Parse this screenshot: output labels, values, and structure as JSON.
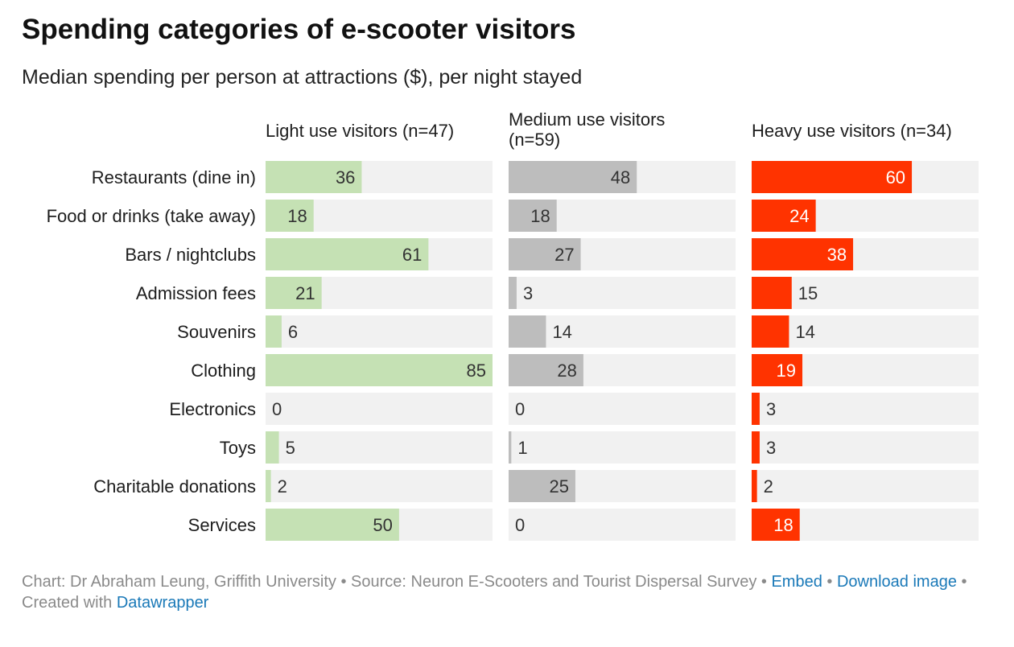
{
  "title": "Spending categories of e-scooter visitors",
  "subtitle": "Median spending per person at attractions ($), per night stayed",
  "footer": {
    "chart_credit": "Chart: Dr Abraham Leung, Griffith University",
    "sep1": " • ",
    "source": "Source: Neuron E-Scooters and Tourist Dispersal Survey",
    "sep2": " • ",
    "embed": "Embed",
    "sep3": " • ",
    "download": "Download image",
    "sep4": " • ",
    "created": "Created with ",
    "datawrapper": "Datawrapper"
  },
  "colors": {
    "light": "#c5e1b4",
    "medium": "#bdbdbd",
    "heavy": "#ff3300",
    "track": "#f1f1f1",
    "text_dark": "#333333",
    "text_light": "#ffffff",
    "link": "#1a79b8"
  },
  "chart_data": {
    "type": "bar",
    "orientation": "horizontal",
    "layout": "small-multiples",
    "title": "Spending categories of e-scooter visitors",
    "subtitle": "Median spending per person at attractions ($), per night stayed",
    "categories": [
      "Restaurants (dine in)",
      "Food or drinks (take away)",
      "Bars / nightclubs",
      "Admission fees",
      "Souvenirs",
      "Clothing",
      "Electronics",
      "Toys",
      "Charitable donations",
      "Services"
    ],
    "xlim": [
      0,
      85
    ],
    "series": [
      {
        "name": "Light use visitors (n=47)",
        "name_lines": [
          "Light use visitors (n=47)"
        ],
        "color": "#c5e1b4",
        "label_color": "#333333",
        "values": [
          36,
          18,
          61,
          21,
          6,
          85,
          0,
          5,
          2,
          50
        ]
      },
      {
        "name": "Medium use visitors (n=59)",
        "name_lines": [
          "Medium use visitors",
          "(n=59)"
        ],
        "color": "#bdbdbd",
        "label_color": "#333333",
        "values": [
          48,
          18,
          27,
          3,
          14,
          28,
          0,
          1,
          25,
          0
        ]
      },
      {
        "name": "Heavy use visitors (n=34)",
        "name_lines": [
          "Heavy use visitors (n=34)"
        ],
        "color": "#ff3300",
        "label_color": "#ffffff",
        "values": [
          60,
          24,
          38,
          15,
          14,
          19,
          3,
          3,
          2,
          18
        ]
      }
    ]
  }
}
